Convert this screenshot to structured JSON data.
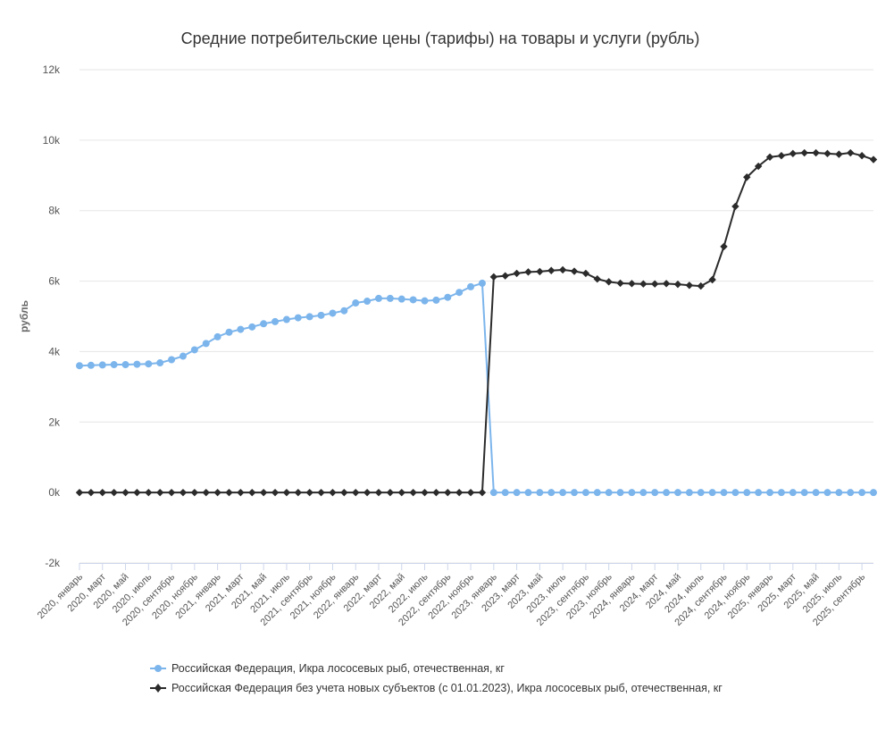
{
  "chart_data": {
    "type": "line",
    "title": "Средние потребительские цены (тарифы) на товары и услуги (рубль)",
    "ylabel": "рубль",
    "ylim": [
      -2000,
      12000
    ],
    "yticks": [
      -2000,
      0,
      2000,
      4000,
      6000,
      8000,
      10000,
      12000
    ],
    "ytick_labels": [
      "-2k",
      "0k",
      "2k",
      "4k",
      "6k",
      "8k",
      "10k",
      "12k"
    ],
    "grid": true,
    "legend_position": "bottom",
    "x": [
      "2020, январь",
      "2020, февраль",
      "2020, март",
      "2020, апрель",
      "2020, май",
      "2020, июнь",
      "2020, июль",
      "2020, август",
      "2020, сентябрь",
      "2020, октябрь",
      "2020, ноябрь",
      "2020, декабрь",
      "2021, январь",
      "2021, февраль",
      "2021, март",
      "2021, апрель",
      "2021, май",
      "2021, июнь",
      "2021, июль",
      "2021, август",
      "2021, сентябрь",
      "2021, октябрь",
      "2021, ноябрь",
      "2021, декабрь",
      "2022, январь",
      "2022, февраль",
      "2022, март",
      "2022, апрель",
      "2022, май",
      "2022, июнь",
      "2022, июль",
      "2022, август",
      "2022, сентябрь",
      "2022, октябрь",
      "2022, ноябрь",
      "2022, декабрь",
      "2023, январь",
      "2023, февраль",
      "2023, март",
      "2023, апрель",
      "2023, май",
      "2023, июнь",
      "2023, июль",
      "2023, август",
      "2023, сентябрь",
      "2023, октябрь",
      "2023, ноябрь",
      "2023, декабрь",
      "2024, январь",
      "2024, февраль",
      "2024, март",
      "2024, апрель",
      "2024, май",
      "2024, июнь",
      "2024, июль",
      "2024, август",
      "2024, сентябрь",
      "2024, октябрь",
      "2024, ноябрь",
      "2024, декабрь",
      "2025, январь",
      "2025, февраль",
      "2025, март",
      "2025, апрель",
      "2025, май",
      "2025, июнь",
      "2025, июль",
      "2025, август",
      "2025, сентябрь",
      "2025, октябрь"
    ],
    "x_tick_labels": [
      "2020, январь",
      "2020, март",
      "2020, май",
      "2020, июль",
      "2020, сентябрь",
      "2020, ноябрь",
      "2021, январь",
      "2021, март",
      "2021, май",
      "2021, июль",
      "2021, сентябрь",
      "2021, ноябрь",
      "2022, январь",
      "2022, март",
      "2022, май",
      "2022, июль",
      "2022, сентябрь",
      "2022, ноябрь",
      "2023, январь",
      "2023, март",
      "2023, май",
      "2023, июль",
      "2023, сентябрь",
      "2023, ноябрь",
      "2024, январь",
      "2024, март",
      "2024, май",
      "2024, июль",
      "2024, сентябрь",
      "2024, ноябрь",
      "2025, январь",
      "2025, март",
      "2025, май",
      "2025, июль",
      "2025, сентябрь"
    ],
    "series": [
      {
        "name": "Российская Федерация, Икра лососевых рыб, отечественная, кг",
        "color": "#7cb5ec",
        "marker": "circle",
        "values": [
          3600,
          3610,
          3620,
          3630,
          3630,
          3640,
          3650,
          3680,
          3770,
          3870,
          4050,
          4230,
          4420,
          4550,
          4630,
          4700,
          4790,
          4850,
          4910,
          4960,
          4990,
          5030,
          5090,
          5160,
          5380,
          5430,
          5510,
          5510,
          5490,
          5470,
          5440,
          5460,
          5540,
          5680,
          5840,
          5940,
          0,
          0,
          0,
          0,
          0,
          0,
          0,
          0,
          0,
          0,
          0,
          0,
          0,
          0,
          0,
          0,
          0,
          0,
          0,
          0,
          0,
          0,
          0,
          0,
          0,
          0,
          0,
          0,
          0,
          0,
          0,
          0,
          0,
          0
        ]
      },
      {
        "name": "Российская Федерация без учета новых субъектов (с 01.01.2023), Икра лососевых рыб, отечественная, кг",
        "color": "#2b2b2b",
        "marker": "diamond",
        "values": [
          0,
          0,
          0,
          0,
          0,
          0,
          0,
          0,
          0,
          0,
          0,
          0,
          0,
          0,
          0,
          0,
          0,
          0,
          0,
          0,
          0,
          0,
          0,
          0,
          0,
          0,
          0,
          0,
          0,
          0,
          0,
          0,
          0,
          0,
          0,
          0,
          6120,
          6150,
          6220,
          6260,
          6270,
          6300,
          6320,
          6280,
          6220,
          6060,
          5980,
          5940,
          5930,
          5920,
          5920,
          5930,
          5910,
          5880,
          5860,
          6040,
          6980,
          8120,
          8950,
          9260,
          9520,
          9560,
          9620,
          9640,
          9640,
          9620,
          9600,
          9640,
          9560,
          9450
        ]
      }
    ]
  }
}
